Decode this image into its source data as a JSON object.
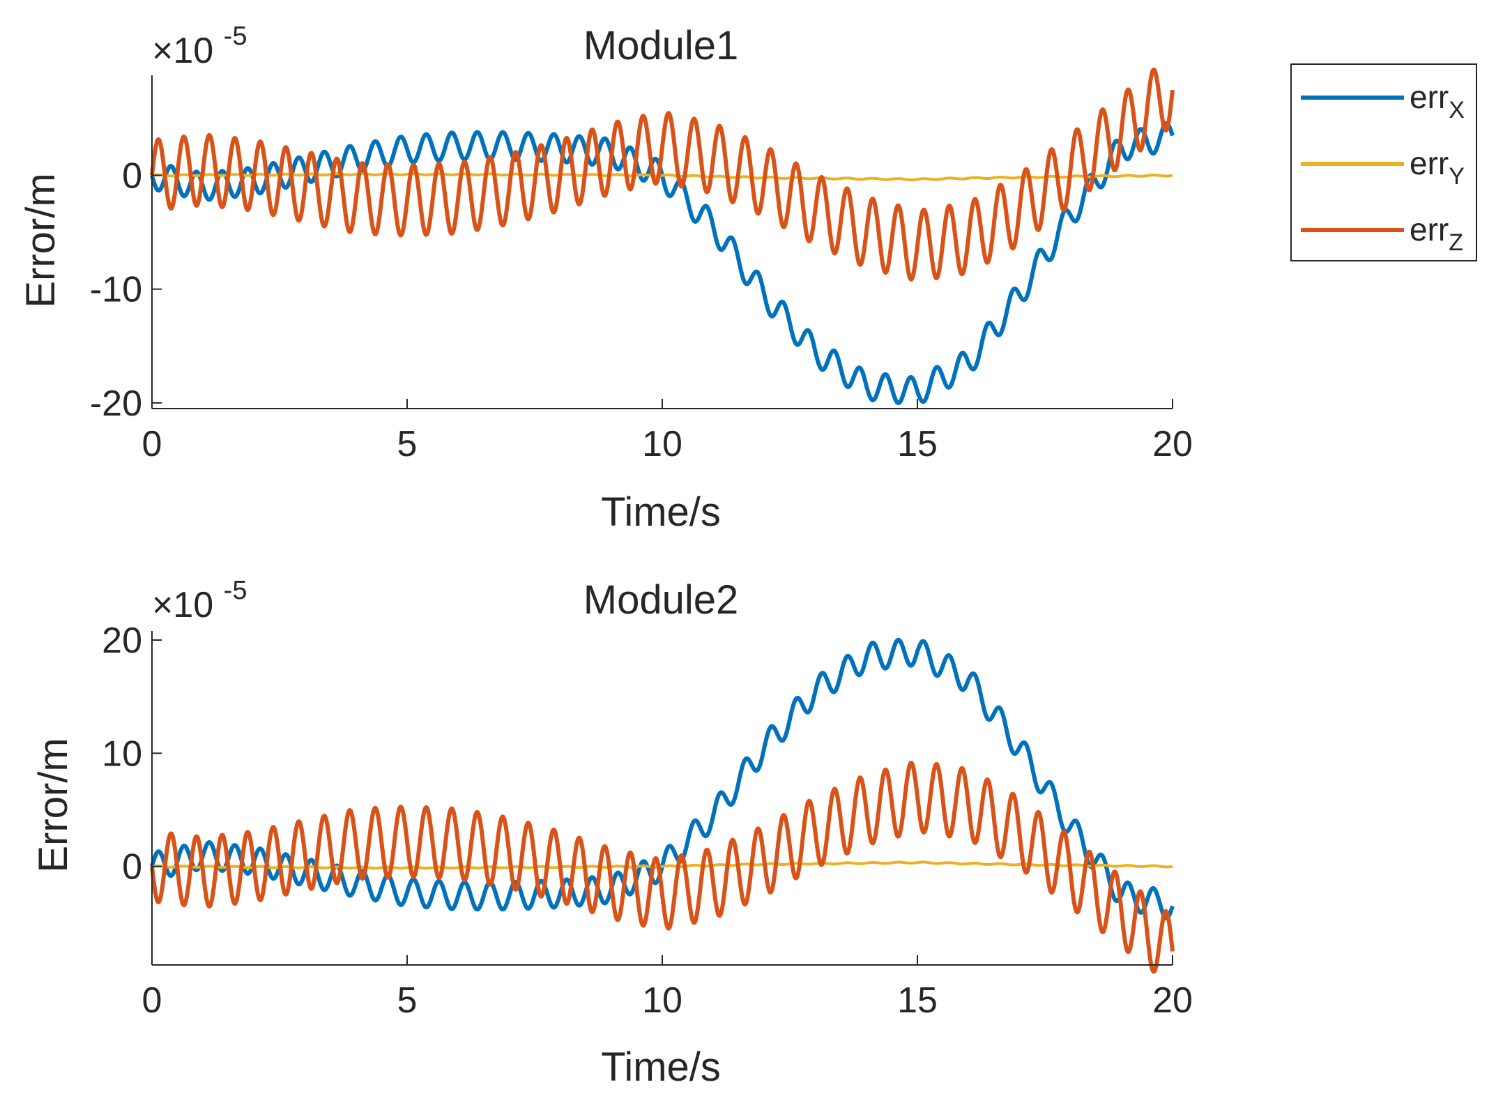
{
  "legend": {
    "entries": [
      {
        "base": "err",
        "sub": "X",
        "series": "err_X",
        "color": "#0072BD"
      },
      {
        "base": "err",
        "sub": "Y",
        "series": "err_Y",
        "color": "#EDB120"
      },
      {
        "base": "err",
        "sub": "Z",
        "series": "err_Z",
        "color": "#D95319"
      }
    ]
  },
  "chart_data": [
    {
      "type": "line",
      "title": "Module1",
      "xlabel": "Time/s",
      "ylabel": "Error/m",
      "exponent_label": "×10",
      "exponent_value": "-5",
      "xlim": [
        0,
        20
      ],
      "ylim": [
        -20.5,
        8.8
      ],
      "xticks": [
        0,
        5,
        10,
        15,
        20
      ],
      "xtick_labels": [
        "0",
        "5",
        "10",
        "15",
        "20"
      ],
      "yticks": [
        -20,
        -10,
        0
      ],
      "ytick_labels": [
        "-20",
        "-10",
        "0"
      ],
      "grid": false,
      "series": [
        {
          "name": "err_X",
          "color": "#0072BD",
          "x": [
            0,
            1,
            2,
            3,
            4,
            5,
            6,
            7,
            8,
            9,
            10,
            11,
            12,
            13,
            14,
            15,
            16,
            17,
            18,
            19,
            20
          ],
          "mean": [
            0,
            -1,
            -0.5,
            0.5,
            1.5,
            2.3,
            2.6,
            2.6,
            2.4,
            2.0,
            0,
            -4.5,
            -10.5,
            -15.5,
            -18.5,
            -19,
            -16.5,
            -10.5,
            -3.5,
            2.5,
            3.5
          ],
          "osc_amp": 1.2,
          "osc_period": 0.5,
          "osc_phase": 3.14159
        },
        {
          "name": "err_Y",
          "color": "#EDB120",
          "x": [
            0,
            2,
            4,
            6,
            8,
            10,
            12,
            14,
            15,
            16,
            18,
            20
          ],
          "mean": [
            0,
            0.05,
            0.1,
            0.1,
            0.05,
            0,
            -0.2,
            -0.3,
            -0.35,
            -0.25,
            -0.1,
            0
          ],
          "osc_amp": 0.05,
          "osc_period": 0.5,
          "osc_phase": 0
        },
        {
          "name": "err_Z",
          "color": "#D95319",
          "x": [
            0,
            1,
            2,
            3,
            4,
            5,
            6,
            7,
            8,
            9,
            10,
            11,
            12,
            13,
            14,
            15,
            16,
            17,
            18,
            19,
            20
          ],
          "mean": [
            0,
            0.5,
            0,
            -1,
            -2,
            -2.2,
            -2,
            -1.2,
            0,
            1.5,
            2.5,
            1.5,
            -0.5,
            -3,
            -5,
            -6.2,
            -5.5,
            -3,
            0.5,
            4,
            7.5
          ],
          "osc_amp": 3.1,
          "osc_period": 0.5,
          "osc_phase": 0
        }
      ]
    },
    {
      "type": "line",
      "title": "Module2",
      "xlabel": "Time/s",
      "ylabel": "Error/m",
      "exponent_label": "×10",
      "exponent_value": "-5",
      "xlim": [
        0,
        20
      ],
      "ylim": [
        -8.7,
        20.8
      ],
      "xticks": [
        0,
        5,
        10,
        15,
        20
      ],
      "xtick_labels": [
        "0",
        "5",
        "10",
        "15",
        "20"
      ],
      "yticks": [
        0,
        10,
        20
      ],
      "ytick_labels": [
        "0",
        "10",
        "20"
      ],
      "grid": false,
      "series": [
        {
          "name": "err_X",
          "color": "#0072BD",
          "x": [
            0,
            1,
            2,
            3,
            4,
            5,
            6,
            7,
            8,
            9,
            10,
            11,
            12,
            13,
            14,
            15,
            16,
            17,
            18,
            19,
            20
          ],
          "mean": [
            0,
            1,
            0.5,
            -0.5,
            -1.5,
            -2.3,
            -2.6,
            -2.6,
            -2.4,
            -2.0,
            0,
            4.5,
            10.5,
            15.5,
            18.5,
            19,
            16.5,
            10.5,
            3.5,
            -2.5,
            -3.5
          ],
          "osc_amp": 1.2,
          "osc_period": 0.5,
          "osc_phase": 0
        },
        {
          "name": "err_Y",
          "color": "#EDB120",
          "x": [
            0,
            2,
            4,
            6,
            8,
            10,
            12,
            14,
            15,
            16,
            18,
            20
          ],
          "mean": [
            0,
            -0.05,
            -0.1,
            -0.1,
            -0.05,
            0,
            0.2,
            0.3,
            0.35,
            0.25,
            0.1,
            0
          ],
          "osc_amp": 0.05,
          "osc_period": 0.5,
          "osc_phase": 0
        },
        {
          "name": "err_Z",
          "color": "#D95319",
          "x": [
            0,
            1,
            2,
            3,
            4,
            5,
            6,
            7,
            8,
            9,
            10,
            11,
            12,
            13,
            14,
            15,
            16,
            17,
            18,
            19,
            20
          ],
          "mean": [
            0,
            -0.5,
            0,
            1,
            2,
            2.2,
            2,
            1.2,
            0,
            -1.5,
            -2.5,
            -1.5,
            0.5,
            3,
            5,
            6.2,
            5.5,
            3,
            -0.5,
            -4,
            -7.5
          ],
          "osc_amp": 3.1,
          "osc_period": 0.5,
          "osc_phase": 3.14159
        }
      ]
    }
  ]
}
